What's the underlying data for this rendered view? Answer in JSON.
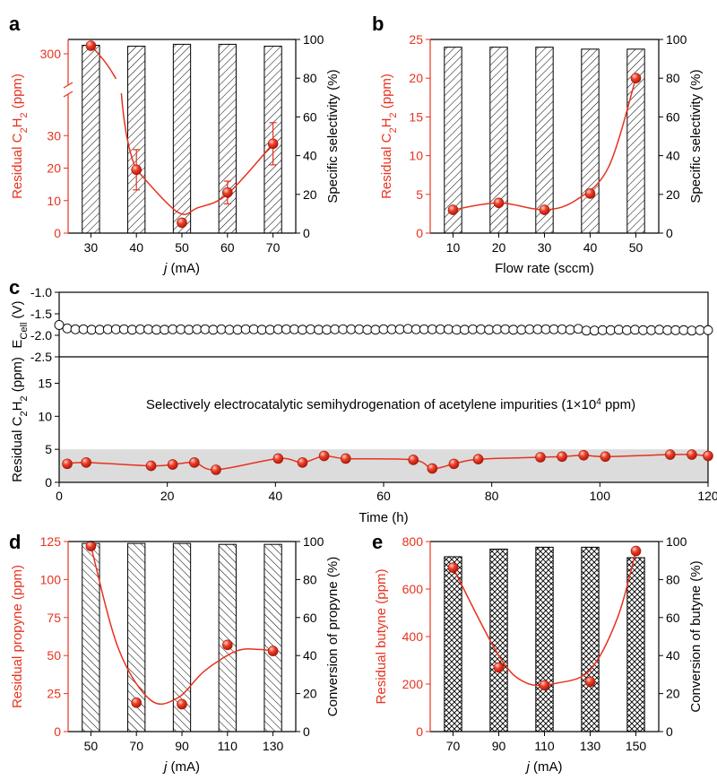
{
  "colors": {
    "accent": "#e8321e",
    "bar_edge": "#000000",
    "band": "#dcdcdc"
  },
  "chart_data": [
    {
      "panel": "a",
      "type": "bar",
      "x": [
        30,
        40,
        50,
        60,
        70
      ],
      "xlabel_italic": "j",
      "xlabel_rest": " (mA)",
      "ylabel": "Residual C2H2 (ppm)",
      "ylabel_parts": [
        "Residual C",
        "2",
        "H",
        "2",
        " (ppm)"
      ],
      "y2label": "Specific selectivity (%)",
      "ylim_lower": [
        0,
        40
      ],
      "ylim_upper_value": 300,
      "y_ticks": [
        "0",
        "10",
        "20",
        "30",
        "300"
      ],
      "y2lim": [
        0,
        100
      ],
      "y2_ticks": [
        "0",
        "20",
        "40",
        "60",
        "80",
        "100"
      ],
      "bars": {
        "name": "Specific selectivity",
        "values": [
          97,
          96.5,
          97.5,
          97.5,
          96.5
        ],
        "pattern": "diag-right"
      },
      "points": {
        "name": "Residual C2H2",
        "values": [
          318,
          19.5,
          3.2,
          12.5,
          27.5
        ],
        "errors": [
          0,
          6.2,
          0.6,
          3.5,
          6.5
        ]
      },
      "break_between": [
        30,
        300
      ]
    },
    {
      "panel": "b",
      "type": "bar",
      "x": [
        10,
        20,
        30,
        40,
        50
      ],
      "xlabel": "Flow rate (sccm)",
      "ylabel": "Residual C2H2 (ppm)",
      "ylabel_parts": [
        "Residual C",
        "2",
        "H",
        "2",
        " (ppm)"
      ],
      "y2label": "Specific selectivity (%)",
      "ylim": [
        0,
        25
      ],
      "y_ticks": [
        "0",
        "5",
        "10",
        "15",
        "20",
        "25"
      ],
      "y2lim": [
        0,
        100
      ],
      "y2_ticks": [
        "0",
        "20",
        "40",
        "60",
        "80",
        "100"
      ],
      "bars": {
        "name": "Specific selectivity",
        "values": [
          96,
          96,
          96,
          95,
          95
        ],
        "pattern": "diag-right"
      },
      "points": {
        "name": "Residual C2H2",
        "values": [
          3.0,
          3.9,
          3.0,
          5.1,
          20
        ]
      }
    },
    {
      "panel": "c",
      "type": "scatter",
      "xlabel": "Time (h)",
      "xlim": [
        0,
        120
      ],
      "x_ticks": [
        "0",
        "20",
        "40",
        "60",
        "80",
        "100",
        "120"
      ],
      "top": {
        "ylabel_main": "E",
        "ylabel_sub": "Cell",
        "ylabel_rest": " (V)",
        "ylim": [
          -2.5,
          -1.0
        ],
        "y_ticks": [
          "-1.0",
          "-1.5",
          "-2.0",
          "-2.5"
        ],
        "series": {
          "x": [
            0.0,
            1.5,
            3.0,
            4.5,
            6.0,
            7.5,
            9.0,
            10.5,
            12.0,
            13.5,
            15.0,
            16.5,
            18.0,
            19.5,
            21.0,
            22.5,
            24.0,
            25.5,
            27.0,
            28.5,
            30.0,
            31.5,
            33.0,
            34.5,
            36.0,
            37.5,
            39.0,
            40.5,
            42.0,
            43.5,
            45.0,
            46.5,
            48.0,
            49.5,
            51.0,
            52.5,
            54.0,
            55.5,
            57.0,
            58.5,
            60.0,
            61.5,
            63.0,
            64.5,
            66.0,
            67.5,
            69.0,
            70.5,
            72.0,
            73.5,
            75.0,
            76.5,
            78.0,
            79.5,
            81.0,
            82.5,
            84.0,
            85.5,
            87.0,
            88.5,
            90.0,
            91.5,
            93.0,
            94.5,
            96.0,
            97.5,
            99.0,
            100.5,
            102.0,
            103.5,
            105.0,
            106.5,
            108.0,
            109.5,
            111.0,
            112.5,
            114.0,
            115.5,
            117.0,
            118.5,
            120.0
          ],
          "y": [
            -1.76,
            -1.84,
            -1.86,
            -1.86,
            -1.87,
            -1.87,
            -1.86,
            -1.86,
            -1.86,
            -1.87,
            -1.86,
            -1.86,
            -1.87,
            -1.87,
            -1.86,
            -1.86,
            -1.87,
            -1.86,
            -1.86,
            -1.87,
            -1.86,
            -1.87,
            -1.87,
            -1.86,
            -1.86,
            -1.87,
            -1.87,
            -1.86,
            -1.86,
            -1.86,
            -1.87,
            -1.86,
            -1.87,
            -1.87,
            -1.86,
            -1.86,
            -1.86,
            -1.86,
            -1.87,
            -1.87,
            -1.86,
            -1.86,
            -1.86,
            -1.85,
            -1.86,
            -1.86,
            -1.86,
            -1.86,
            -1.86,
            -1.87,
            -1.87,
            -1.86,
            -1.86,
            -1.87,
            -1.86,
            -1.86,
            -1.87,
            -1.87,
            -1.86,
            -1.86,
            -1.86,
            -1.86,
            -1.86,
            -1.87,
            -1.85,
            -1.89,
            -1.89,
            -1.88,
            -1.88,
            -1.87,
            -1.88,
            -1.87,
            -1.88,
            -1.88,
            -1.87,
            -1.88,
            -1.88,
            -1.88,
            -1.89,
            -1.88,
            -1.88
          ]
        }
      },
      "bottom": {
        "ylabel": "Residual C2H2 (ppm)",
        "ylabel_parts": [
          "Residual C",
          "2",
          "H",
          "2",
          " (ppm)"
        ],
        "ylim": [
          0,
          19
        ],
        "y_ticks": [
          "0",
          "5",
          "10",
          "15"
        ],
        "band": [
          0,
          5
        ],
        "annotation": "Selectively electrocatalytic semihydrogenation of acetylene impurities (1×10",
        "annotation_sup": "4",
        "annotation_end": " ppm)",
        "series": {
          "x": [
            1.5,
            5,
            17,
            21,
            25,
            29,
            40.5,
            45,
            49,
            53,
            65.5,
            69,
            73,
            77.5,
            89,
            93,
            97,
            101,
            113,
            117,
            120
          ],
          "y": [
            2.8,
            3.0,
            2.5,
            2.7,
            3.0,
            1.9,
            3.6,
            3.0,
            4.0,
            3.6,
            3.4,
            2.1,
            2.8,
            3.5,
            3.8,
            3.9,
            4.1,
            3.9,
            4.2,
            4.2,
            4.0
          ]
        }
      }
    },
    {
      "panel": "d",
      "type": "bar",
      "x": [
        50,
        70,
        90,
        110,
        130
      ],
      "xlabel_italic": "j",
      "xlabel_rest": " (mA)",
      "ylabel": "Residual propyne (ppm)",
      "y2label": "Conversion of propyne (%)",
      "ylim": [
        0,
        125
      ],
      "y_ticks": [
        "0",
        "25",
        "50",
        "75",
        "100",
        "125"
      ],
      "y2lim": [
        0,
        100
      ],
      "y2_ticks": [
        "0",
        "20",
        "40",
        "60",
        "80",
        "100"
      ],
      "bars": {
        "name": "Conversion of propyne",
        "values": [
          99,
          99,
          99,
          98.5,
          98.5
        ],
        "pattern": "diag-left"
      },
      "points": {
        "name": "Residual propyne",
        "values": [
          122,
          19,
          18,
          57,
          53
        ]
      }
    },
    {
      "panel": "e",
      "type": "bar",
      "x": [
        70,
        90,
        110,
        130,
        150
      ],
      "xlabel_italic": "j",
      "xlabel_rest": " (mA)",
      "ylabel": "Residual butyne (ppm)",
      "y2label": "Conversion of butyne (%)",
      "ylim": [
        0,
        800
      ],
      "y_ticks": [
        "0",
        "200",
        "400",
        "600",
        "800"
      ],
      "y2lim": [
        0,
        100
      ],
      "y2_ticks": [
        "0",
        "20",
        "40",
        "60",
        "80",
        "100"
      ],
      "bars": {
        "name": "Conversion of butyne",
        "values": [
          92,
          96,
          97,
          97,
          91.5
        ],
        "pattern": "crosshatch"
      },
      "points": {
        "name": "Residual butyne",
        "values": [
          690,
          270,
          195,
          210,
          760
        ]
      }
    }
  ]
}
